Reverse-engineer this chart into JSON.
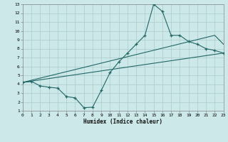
{
  "xlabel": "Humidex (Indice chaleur)",
  "bg_color": "#cce8e8",
  "grid_color": "#aacccc",
  "line_color": "#226666",
  "xlim": [
    0,
    23
  ],
  "ylim": [
    1,
    13
  ],
  "xticks": [
    0,
    1,
    2,
    3,
    4,
    5,
    6,
    7,
    8,
    9,
    10,
    11,
    12,
    13,
    14,
    15,
    16,
    17,
    18,
    19,
    20,
    21,
    22,
    23
  ],
  "yticks": [
    1,
    2,
    3,
    4,
    5,
    6,
    7,
    8,
    9,
    10,
    11,
    12,
    13
  ],
  "line1_x": [
    0,
    1,
    2,
    3,
    4,
    5,
    6,
    7,
    8,
    9,
    10,
    11,
    12,
    13,
    14,
    15,
    16,
    17,
    18,
    19,
    20,
    21,
    22,
    23
  ],
  "line1_y": [
    4.2,
    4.3,
    3.8,
    3.65,
    3.55,
    2.6,
    2.45,
    1.35,
    1.4,
    3.3,
    5.3,
    6.5,
    7.5,
    8.5,
    9.5,
    13.0,
    12.2,
    9.5,
    9.5,
    8.8,
    8.5,
    8.0,
    7.8,
    7.5
  ],
  "line2_x": [
    0,
    22,
    23
  ],
  "line2_y": [
    4.2,
    9.5,
    8.5
  ],
  "line3_x": [
    0,
    23
  ],
  "line3_y": [
    4.2,
    7.5
  ]
}
